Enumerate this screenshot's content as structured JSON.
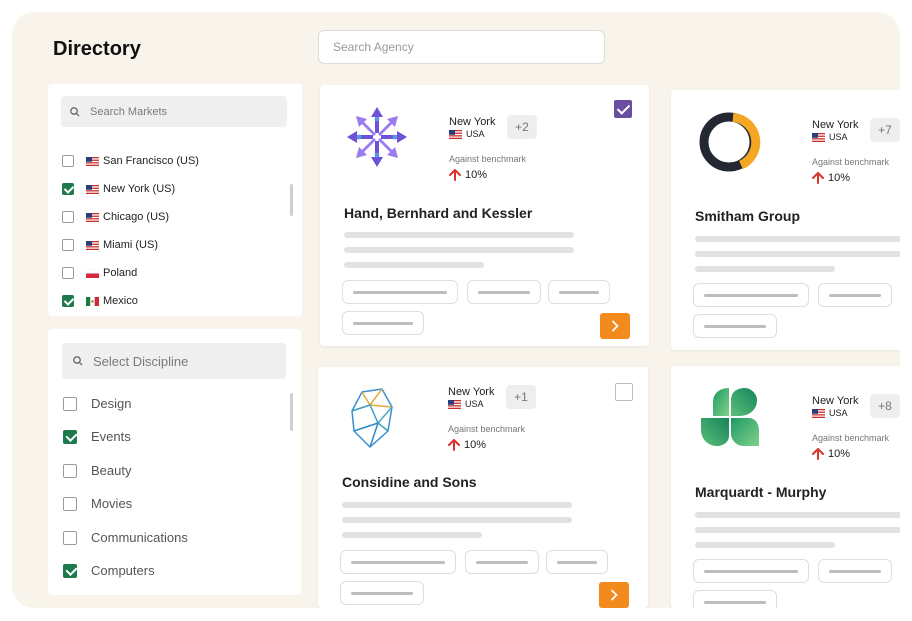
{
  "header": {
    "title": "Directory"
  },
  "search": {
    "placeholder": "Search Agency"
  },
  "markets": {
    "search_placeholder": "Search Markets",
    "items": [
      {
        "label": "San Francisco (US)",
        "checked": false,
        "flag": "us-flag-icon"
      },
      {
        "label": "New York (US)",
        "checked": true,
        "flag": "us-flag-icon"
      },
      {
        "label": "Chicago (US)",
        "checked": false,
        "flag": "us-flag-icon"
      },
      {
        "label": "Miami (US)",
        "checked": false,
        "flag": "us-flag-icon"
      },
      {
        "label": "Poland",
        "checked": false,
        "flag": "poland-flag-icon"
      },
      {
        "label": "Mexico",
        "checked": true,
        "flag": "mexico-flag-icon"
      }
    ]
  },
  "disciplines": {
    "search_placeholder": "Select Discipline",
    "items": [
      {
        "label": "Design",
        "checked": false
      },
      {
        "label": "Events",
        "checked": true
      },
      {
        "label": "Beauty",
        "checked": false
      },
      {
        "label": "Movies",
        "checked": false
      },
      {
        "label": "Communications",
        "checked": false
      },
      {
        "label": "Computers",
        "checked": true
      }
    ]
  },
  "agencies": [
    {
      "name": "Hand, Bernhard and Kessler",
      "city": "New York",
      "country": "USA",
      "more": "+2",
      "benchmark_label": "Against benchmark",
      "benchmark_value": "10%",
      "selected": true,
      "logo": "purple-arrows-logo-icon"
    },
    {
      "name": "Smitham Group",
      "city": "New York",
      "country": "USA",
      "more": "+7",
      "benchmark_label": "Against benchmark",
      "benchmark_value": "10%",
      "selected": false,
      "logo": "ring-logo-icon"
    },
    {
      "name": "Considine and Sons",
      "city": "New York",
      "country": "USA",
      "more": "+1",
      "benchmark_label": "Against benchmark",
      "benchmark_value": "10%",
      "selected": false,
      "logo": "polyhedron-logo-icon"
    },
    {
      "name": "Marquardt - Murphy",
      "city": "New York",
      "country": "USA",
      "more": "+8",
      "benchmark_label": "Against benchmark",
      "benchmark_value": "10%",
      "selected": false,
      "logo": "green-petals-logo-icon"
    }
  ],
  "colors": {
    "background": "#f8f4eb",
    "accent_orange": "#f28a1d",
    "checkbox_green": "#1c7a4b",
    "card_check_purple": "#6a4fa0",
    "benchmark_arrow_red": "#d9332b"
  }
}
